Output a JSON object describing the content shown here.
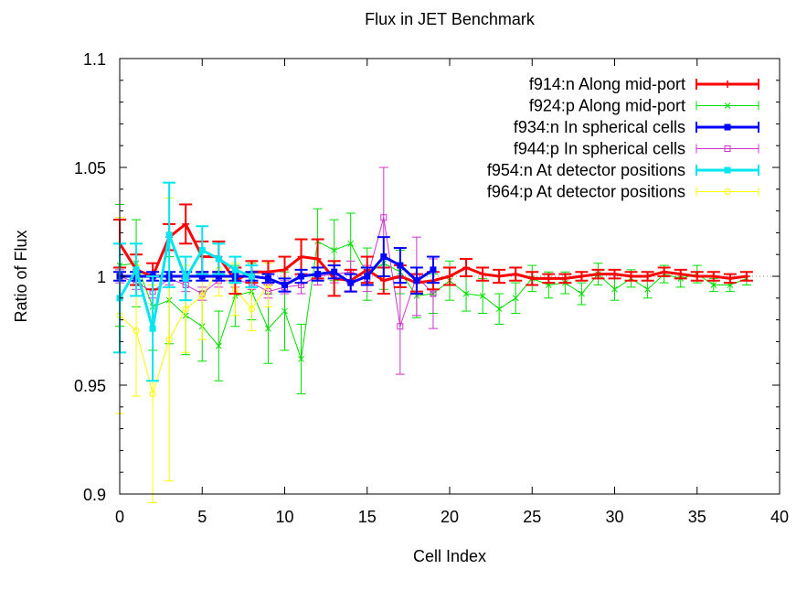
{
  "chart_data": {
    "type": "line",
    "title": "Flux in JET Benchmark",
    "xlabel": "Cell Index",
    "ylabel": "Ratio of Flux",
    "xlim": [
      0,
      40
    ],
    "ylim": [
      0.9,
      1.1
    ],
    "xticks": [
      0,
      5,
      10,
      15,
      20,
      25,
      30,
      35,
      40
    ],
    "yticks": [
      0.9,
      0.95,
      1,
      1.05,
      1.1
    ],
    "xtick_labels": [
      "0",
      "5",
      "10",
      "15",
      "20",
      "25",
      "30",
      "35",
      "40"
    ],
    "ytick_labels": [
      "0.9",
      "0.95",
      "1",
      "1.05",
      "1.1"
    ],
    "reference_line": 1.0,
    "grid": false,
    "legend_position": "top-right",
    "series": [
      {
        "name": "f914:n Along mid-port",
        "color": "#ff0000",
        "marker": "plus",
        "x": [
          0,
          1,
          2,
          3,
          4,
          5,
          6,
          7,
          8,
          9,
          10,
          11,
          12,
          13,
          14,
          15,
          16,
          17,
          18,
          19,
          20,
          21,
          22,
          23,
          24,
          25,
          26,
          27,
          28,
          29,
          30,
          31,
          32,
          33,
          34,
          35,
          36,
          37,
          38
        ],
        "y": [
          1.015,
          1.003,
          1.0,
          1.018,
          1.024,
          1.009,
          1.009,
          0.998,
          1.002,
          1.002,
          1.003,
          1.009,
          1.008,
          0.999,
          0.998,
          1.003,
          0.998,
          1.0,
          0.997,
          0.998,
          1.0,
          1.004,
          1.001,
          1.0,
          1.001,
          0.999,
          0.999,
          0.999,
          1.0,
          1.001,
          1.001,
          1.0,
          1.0,
          1.002,
          1.001,
          1.0,
          1.0,
          0.999,
          1.0
        ],
        "err": [
          0.011,
          0.007,
          0.006,
          0.006,
          0.009,
          0.007,
          0.007,
          0.006,
          0.005,
          0.005,
          0.006,
          0.008,
          0.009,
          0.008,
          0.005,
          0.006,
          0.006,
          0.005,
          0.004,
          0.004,
          0.004,
          0.004,
          0.003,
          0.003,
          0.003,
          0.003,
          0.002,
          0.002,
          0.002,
          0.002,
          0.002,
          0.002,
          0.002,
          0.002,
          0.002,
          0.002,
          0.002,
          0.002,
          0.002
        ]
      },
      {
        "name": "f924:p Along mid-port",
        "color": "#00dd00",
        "marker": "cross",
        "x": [
          0,
          1,
          2,
          3,
          4,
          5,
          6,
          7,
          8,
          9,
          10,
          11,
          12,
          13,
          14,
          15,
          16,
          17,
          18,
          19,
          20,
          21,
          22,
          23,
          24,
          25,
          26,
          27,
          28,
          29,
          30,
          31,
          32,
          33,
          34,
          35,
          36,
          37,
          38
        ],
        "y": [
          1.005,
          1.006,
          0.986,
          0.989,
          0.982,
          0.977,
          0.968,
          0.991,
          0.993,
          0.976,
          0.984,
          0.962,
          1.016,
          1.012,
          1.015,
          1.001,
          1.006,
          1.002,
          0.991,
          0.992,
          0.998,
          0.992,
          0.991,
          0.985,
          0.99,
          0.999,
          0.996,
          0.997,
          0.992,
          1.001,
          0.994,
          0.999,
          0.994,
          1.001,
          0.999,
          1.001,
          0.996,
          0.996,
          0.999
        ],
        "err": [
          0.028,
          0.02,
          0.02,
          0.02,
          0.018,
          0.016,
          0.016,
          0.014,
          0.013,
          0.016,
          0.018,
          0.016,
          0.015,
          0.014,
          0.014,
          0.012,
          0.012,
          0.01,
          0.01,
          0.009,
          0.009,
          0.008,
          0.008,
          0.007,
          0.007,
          0.006,
          0.006,
          0.005,
          0.005,
          0.005,
          0.005,
          0.004,
          0.004,
          0.004,
          0.004,
          0.004,
          0.003,
          0.003,
          0.003
        ]
      },
      {
        "name": "f934:n In spherical cells",
        "color": "#0000ff",
        "marker": "filled-square",
        "x": [
          0,
          1,
          2,
          3,
          4,
          5,
          6,
          7,
          8,
          9,
          10,
          11,
          12,
          13,
          14,
          15,
          16,
          17,
          18,
          19
        ],
        "y": [
          1.0,
          1.0,
          1.0,
          1.0,
          1.0,
          1.0,
          1.0,
          1.0,
          1.0,
          0.999,
          0.996,
          1.0,
          1.001,
          1.002,
          0.997,
          1.0,
          1.009,
          1.005,
          0.998,
          1.003
        ],
        "err": [
          0.002,
          0.002,
          0.002,
          0.002,
          0.002,
          0.002,
          0.002,
          0.002,
          0.002,
          0.002,
          0.003,
          0.003,
          0.003,
          0.003,
          0.004,
          0.004,
          0.009,
          0.008,
          0.006,
          0.006
        ]
      },
      {
        "name": "f944:p In spherical cells",
        "color": "#cc33cc",
        "marker": "open-square",
        "x": [
          0,
          1,
          2,
          3,
          4,
          5,
          6,
          7,
          8,
          9,
          10,
          11,
          12,
          13,
          14,
          15,
          16,
          17,
          18,
          19
        ],
        "y": [
          1.0,
          0.997,
          0.993,
          0.999,
          0.996,
          0.992,
          0.998,
          0.998,
          0.997,
          0.993,
          0.995,
          0.996,
          1.0,
          1.001,
          1.002,
          0.999,
          1.027,
          0.977,
          1.0,
          0.992
        ],
        "err": [
          0.003,
          0.003,
          0.003,
          0.003,
          0.003,
          0.003,
          0.003,
          0.003,
          0.003,
          0.003,
          0.003,
          0.004,
          0.004,
          0.004,
          0.005,
          0.006,
          0.023,
          0.022,
          0.018,
          0.016
        ]
      },
      {
        "name": "f954:n At detector positions",
        "color": "#00e5ee",
        "marker": "filled-square",
        "x": [
          0,
          1,
          2,
          3,
          4,
          5,
          6,
          7,
          8
        ],
        "y": [
          0.99,
          1.003,
          0.976,
          1.019,
          0.999,
          1.012,
          1.008,
          1.003,
          1.0
        ],
        "err": [
          0.025,
          0.012,
          0.024,
          0.024,
          0.01,
          0.011,
          0.007,
          0.006,
          0.005
        ]
      },
      {
        "name": "f964:p At detector positions",
        "color": "#ffff00",
        "marker": "open-circle",
        "x": [
          0,
          1,
          2,
          3,
          4,
          5,
          6,
          7,
          8,
          9
        ],
        "y": [
          0.982,
          0.975,
          0.946,
          0.971,
          0.985,
          0.991,
          1.003,
          0.994,
          0.985,
          0.996
        ],
        "err": [
          0.045,
          0.03,
          0.05,
          0.065,
          0.02,
          0.02,
          0.012,
          0.012,
          0.01,
          0.01
        ]
      }
    ]
  }
}
